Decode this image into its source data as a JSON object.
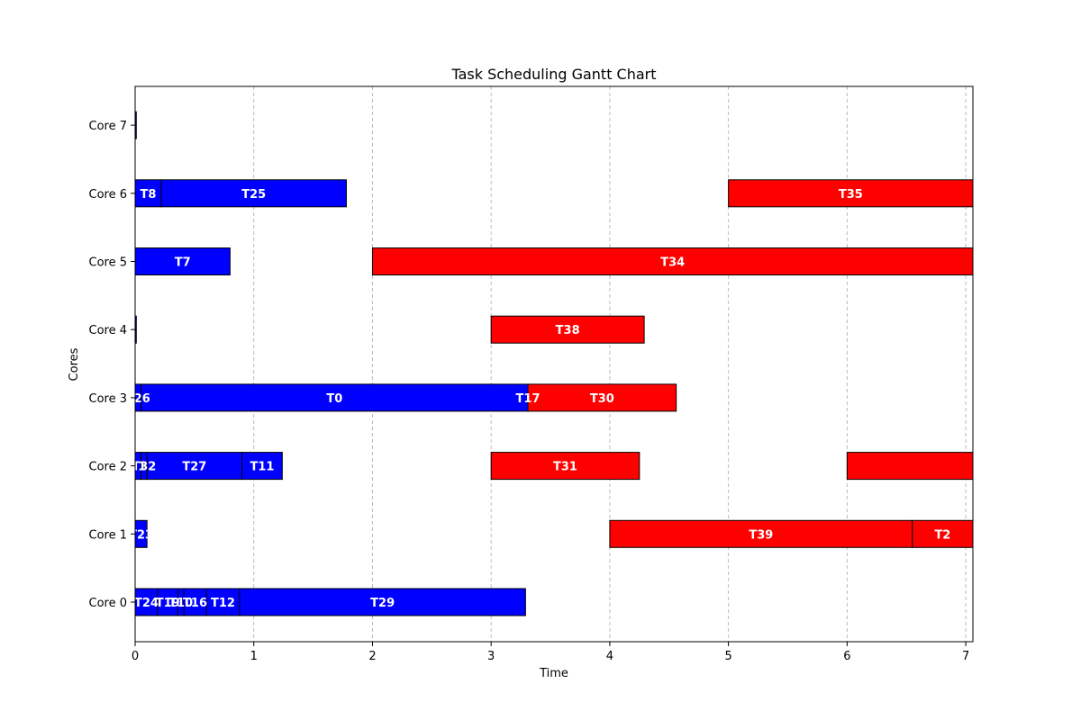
{
  "chart_data": {
    "type": "gantt",
    "title": "Task Scheduling Gantt Chart",
    "xlabel": "Time",
    "ylabel": "Cores",
    "xlim": [
      0,
      7.06
    ],
    "x_ticks": [
      "0",
      "1",
      "2",
      "3",
      "4",
      "5",
      "6",
      "7"
    ],
    "grid": "vertical-dashed",
    "cores": [
      "Core 0",
      "Core 1",
      "Core 2",
      "Core 3",
      "Core 4",
      "Core 5",
      "Core 6",
      "Core 7"
    ],
    "colors": {
      "blue": "#0000ff",
      "red": "#ff0000",
      "edge": "#000000",
      "grid": "#bbbbbb"
    },
    "tasks": [
      {
        "core": 0,
        "start": 0.0,
        "end": 0.19,
        "label": "T24",
        "color": "blue"
      },
      {
        "core": 0,
        "start": 0.19,
        "end": 0.36,
        "label": "T19",
        "color": "blue"
      },
      {
        "core": 0,
        "start": 0.36,
        "end": 0.41,
        "label": "T10",
        "color": "blue"
      },
      {
        "core": 0,
        "start": 0.41,
        "end": 0.6,
        "label": "T16",
        "color": "blue"
      },
      {
        "core": 0,
        "start": 0.6,
        "end": 0.88,
        "label": "T12",
        "color": "blue"
      },
      {
        "core": 0,
        "start": 0.88,
        "end": 3.29,
        "label": "T29",
        "color": "blue"
      },
      {
        "core": 1,
        "start": 0.0,
        "end": 0.1,
        "label": "T23",
        "color": "blue"
      },
      {
        "core": 1,
        "start": 4.0,
        "end": 6.55,
        "label": "T39",
        "color": "red"
      },
      {
        "core": 1,
        "start": 6.55,
        "end": 7.06,
        "label": "T2",
        "color": "red"
      },
      {
        "core": 2,
        "start": 0.0,
        "end": 0.05,
        "label": "T1",
        "color": "blue"
      },
      {
        "core": 2,
        "start": 0.05,
        "end": 0.1,
        "label": "T32",
        "color": "blue"
      },
      {
        "core": 2,
        "start": 0.1,
        "end": 0.9,
        "label": "T27",
        "color": "blue"
      },
      {
        "core": 2,
        "start": 0.9,
        "end": 1.24,
        "label": "T11",
        "color": "blue"
      },
      {
        "core": 2,
        "start": 3.0,
        "end": 4.25,
        "label": "T31",
        "color": "red"
      },
      {
        "core": 2,
        "start": 6.0,
        "end": 7.06,
        "label": "",
        "color": "red"
      },
      {
        "core": 3,
        "start": 0.0,
        "end": 0.05,
        "label": "T26",
        "color": "blue"
      },
      {
        "core": 3,
        "start": 0.05,
        "end": 3.31,
        "label": "T0",
        "color": "blue"
      },
      {
        "core": 3,
        "start": 3.31,
        "end": 3.31,
        "label": "T17",
        "color": "blue"
      },
      {
        "core": 3,
        "start": 3.31,
        "end": 4.56,
        "label": "T30",
        "color": "red"
      },
      {
        "core": 4,
        "start": 0.0,
        "end": 0.01,
        "label": "",
        "color": "blue"
      },
      {
        "core": 4,
        "start": 3.0,
        "end": 4.29,
        "label": "T38",
        "color": "red"
      },
      {
        "core": 5,
        "start": 0.0,
        "end": 0.8,
        "label": "T7",
        "color": "blue"
      },
      {
        "core": 5,
        "start": 2.0,
        "end": 7.06,
        "label": "T34",
        "color": "red"
      },
      {
        "core": 6,
        "start": 0.0,
        "end": 0.22,
        "label": "T8",
        "color": "blue"
      },
      {
        "core": 6,
        "start": 0.22,
        "end": 1.78,
        "label": "T25",
        "color": "blue"
      },
      {
        "core": 6,
        "start": 5.0,
        "end": 7.06,
        "label": "T35",
        "color": "red"
      },
      {
        "core": 7,
        "start": 0.0,
        "end": 0.01,
        "label": "",
        "color": "blue"
      }
    ]
  }
}
